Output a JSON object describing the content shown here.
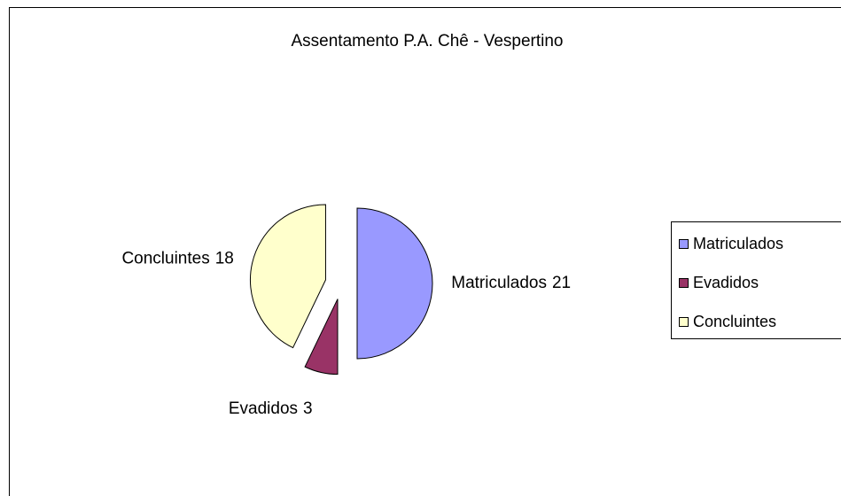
{
  "chart_data": {
    "type": "pie",
    "title": "Assentamento P.A. Chê - Vespertino",
    "categories": [
      "Matriculados",
      "Evadidos",
      "Concluintes"
    ],
    "values": [
      21,
      3,
      18
    ],
    "colors": [
      "#9999ff",
      "#993366",
      "#ffffcc"
    ],
    "legend": "right"
  }
}
